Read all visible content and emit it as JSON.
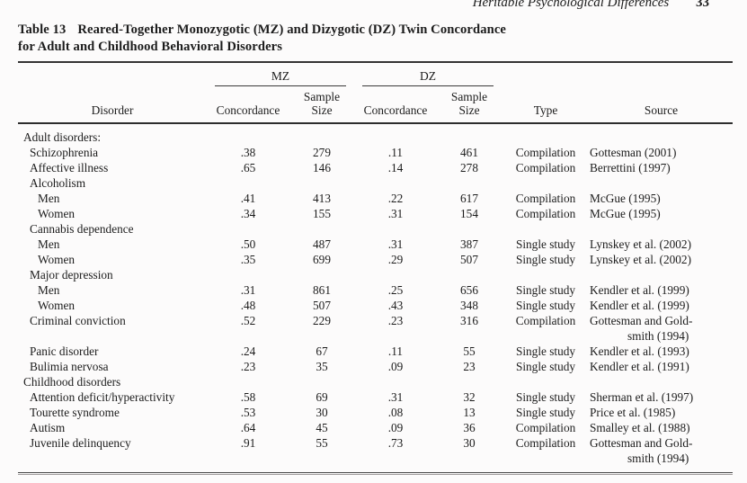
{
  "page": {
    "running_head": "Heritable Psychological Differences",
    "page_number": "33"
  },
  "table": {
    "label": "Table 13",
    "title_line1": "Reared-Together Monozygotic (MZ) and Dizygotic (DZ) Twin Concordance",
    "title_line2": "for Adult and Childhood Behavioral Disorders",
    "spanners": {
      "mz": "MZ",
      "dz": "DZ"
    },
    "headers": {
      "disorder": "Disorder",
      "concordance": "Concordance",
      "sample_line1": "Sample",
      "sample_line2": "Size",
      "type": "Type",
      "source": "Source"
    },
    "rows": [
      {
        "label": "Adult disorders:",
        "indent": 0,
        "mz_c": "",
        "mz_n": "",
        "dz_c": "",
        "dz_n": "",
        "type": "",
        "source": []
      },
      {
        "label": "Schizophrenia",
        "indent": 1,
        "mz_c": ".38",
        "mz_n": "279",
        "dz_c": ".11",
        "dz_n": "461",
        "type": "Compilation",
        "source": [
          "Gottesman (2001)"
        ]
      },
      {
        "label": "Affective illness",
        "indent": 1,
        "mz_c": ".65",
        "mz_n": "146",
        "dz_c": ".14",
        "dz_n": "278",
        "type": "Compilation",
        "source": [
          "Berrettini (1997)"
        ]
      },
      {
        "label": "Alcoholism",
        "indent": 1,
        "mz_c": "",
        "mz_n": "",
        "dz_c": "",
        "dz_n": "",
        "type": "",
        "source": []
      },
      {
        "label": "Men",
        "indent": 2,
        "mz_c": ".41",
        "mz_n": "413",
        "dz_c": ".22",
        "dz_n": "617",
        "type": "Compilation",
        "source": [
          "McGue (1995)"
        ]
      },
      {
        "label": "Women",
        "indent": 2,
        "mz_c": ".34",
        "mz_n": "155",
        "dz_c": ".31",
        "dz_n": "154",
        "type": "Compilation",
        "source": [
          "McGue (1995)"
        ]
      },
      {
        "label": "Cannabis dependence",
        "indent": 1,
        "mz_c": "",
        "mz_n": "",
        "dz_c": "",
        "dz_n": "",
        "type": "",
        "source": []
      },
      {
        "label": "Men",
        "indent": 2,
        "mz_c": ".50",
        "mz_n": "487",
        "dz_c": ".31",
        "dz_n": "387",
        "type": "Single study",
        "source": [
          "Lynskey et al. (2002)"
        ]
      },
      {
        "label": "Women",
        "indent": 2,
        "mz_c": ".35",
        "mz_n": "699",
        "dz_c": ".29",
        "dz_n": "507",
        "type": "Single study",
        "source": [
          "Lynskey et al. (2002)"
        ]
      },
      {
        "label": "Major depression",
        "indent": 1,
        "mz_c": "",
        "mz_n": "",
        "dz_c": "",
        "dz_n": "",
        "type": "",
        "source": []
      },
      {
        "label": "Men",
        "indent": 2,
        "mz_c": ".31",
        "mz_n": "861",
        "dz_c": ".25",
        "dz_n": "656",
        "type": "Single study",
        "source": [
          "Kendler et al. (1999)"
        ]
      },
      {
        "label": "Women",
        "indent": 2,
        "mz_c": ".48",
        "mz_n": "507",
        "dz_c": ".43",
        "dz_n": "348",
        "type": "Single study",
        "source": [
          "Kendler et al. (1999)"
        ]
      },
      {
        "label": "Criminal conviction",
        "indent": 1,
        "mz_c": ".52",
        "mz_n": "229",
        "dz_c": ".23",
        "dz_n": "316",
        "type": "Compilation",
        "source": [
          "Gottesman and Gold-",
          "smith (1994)"
        ]
      },
      {
        "label": "Panic disorder",
        "indent": 1,
        "mz_c": ".24",
        "mz_n": "67",
        "dz_c": ".11",
        "dz_n": "55",
        "type": "Single study",
        "source": [
          "Kendler et al. (1993)"
        ]
      },
      {
        "label": "Bulimia nervosa",
        "indent": 1,
        "mz_c": ".23",
        "mz_n": "35",
        "dz_c": ".09",
        "dz_n": "23",
        "type": "Single study",
        "source": [
          "Kendler et al. (1991)"
        ]
      },
      {
        "label": "Childhood disorders",
        "indent": 0,
        "mz_c": "",
        "mz_n": "",
        "dz_c": "",
        "dz_n": "",
        "type": "",
        "source": []
      },
      {
        "label": "Attention deficit/hyperactivity",
        "indent": 1,
        "mz_c": ".58",
        "mz_n": "69",
        "dz_c": ".31",
        "dz_n": "32",
        "type": "Single study",
        "source": [
          "Sherman et al. (1997)"
        ]
      },
      {
        "label": "Tourette syndrome",
        "indent": 1,
        "mz_c": ".53",
        "mz_n": "30",
        "dz_c": ".08",
        "dz_n": "13",
        "type": "Single study",
        "source": [
          "Price et al. (1985)"
        ]
      },
      {
        "label": "Autism",
        "indent": 1,
        "mz_c": ".64",
        "mz_n": "45",
        "dz_c": ".09",
        "dz_n": "36",
        "type": "Compilation",
        "source": [
          "Smalley et al. (1988)"
        ]
      },
      {
        "label": "Juvenile delinquency",
        "indent": 1,
        "mz_c": ".91",
        "mz_n": "55",
        "dz_c": ".73",
        "dz_n": "30",
        "type": "Compilation",
        "source": [
          "Gottesman and Gold-",
          "smith (1994)"
        ]
      }
    ]
  }
}
